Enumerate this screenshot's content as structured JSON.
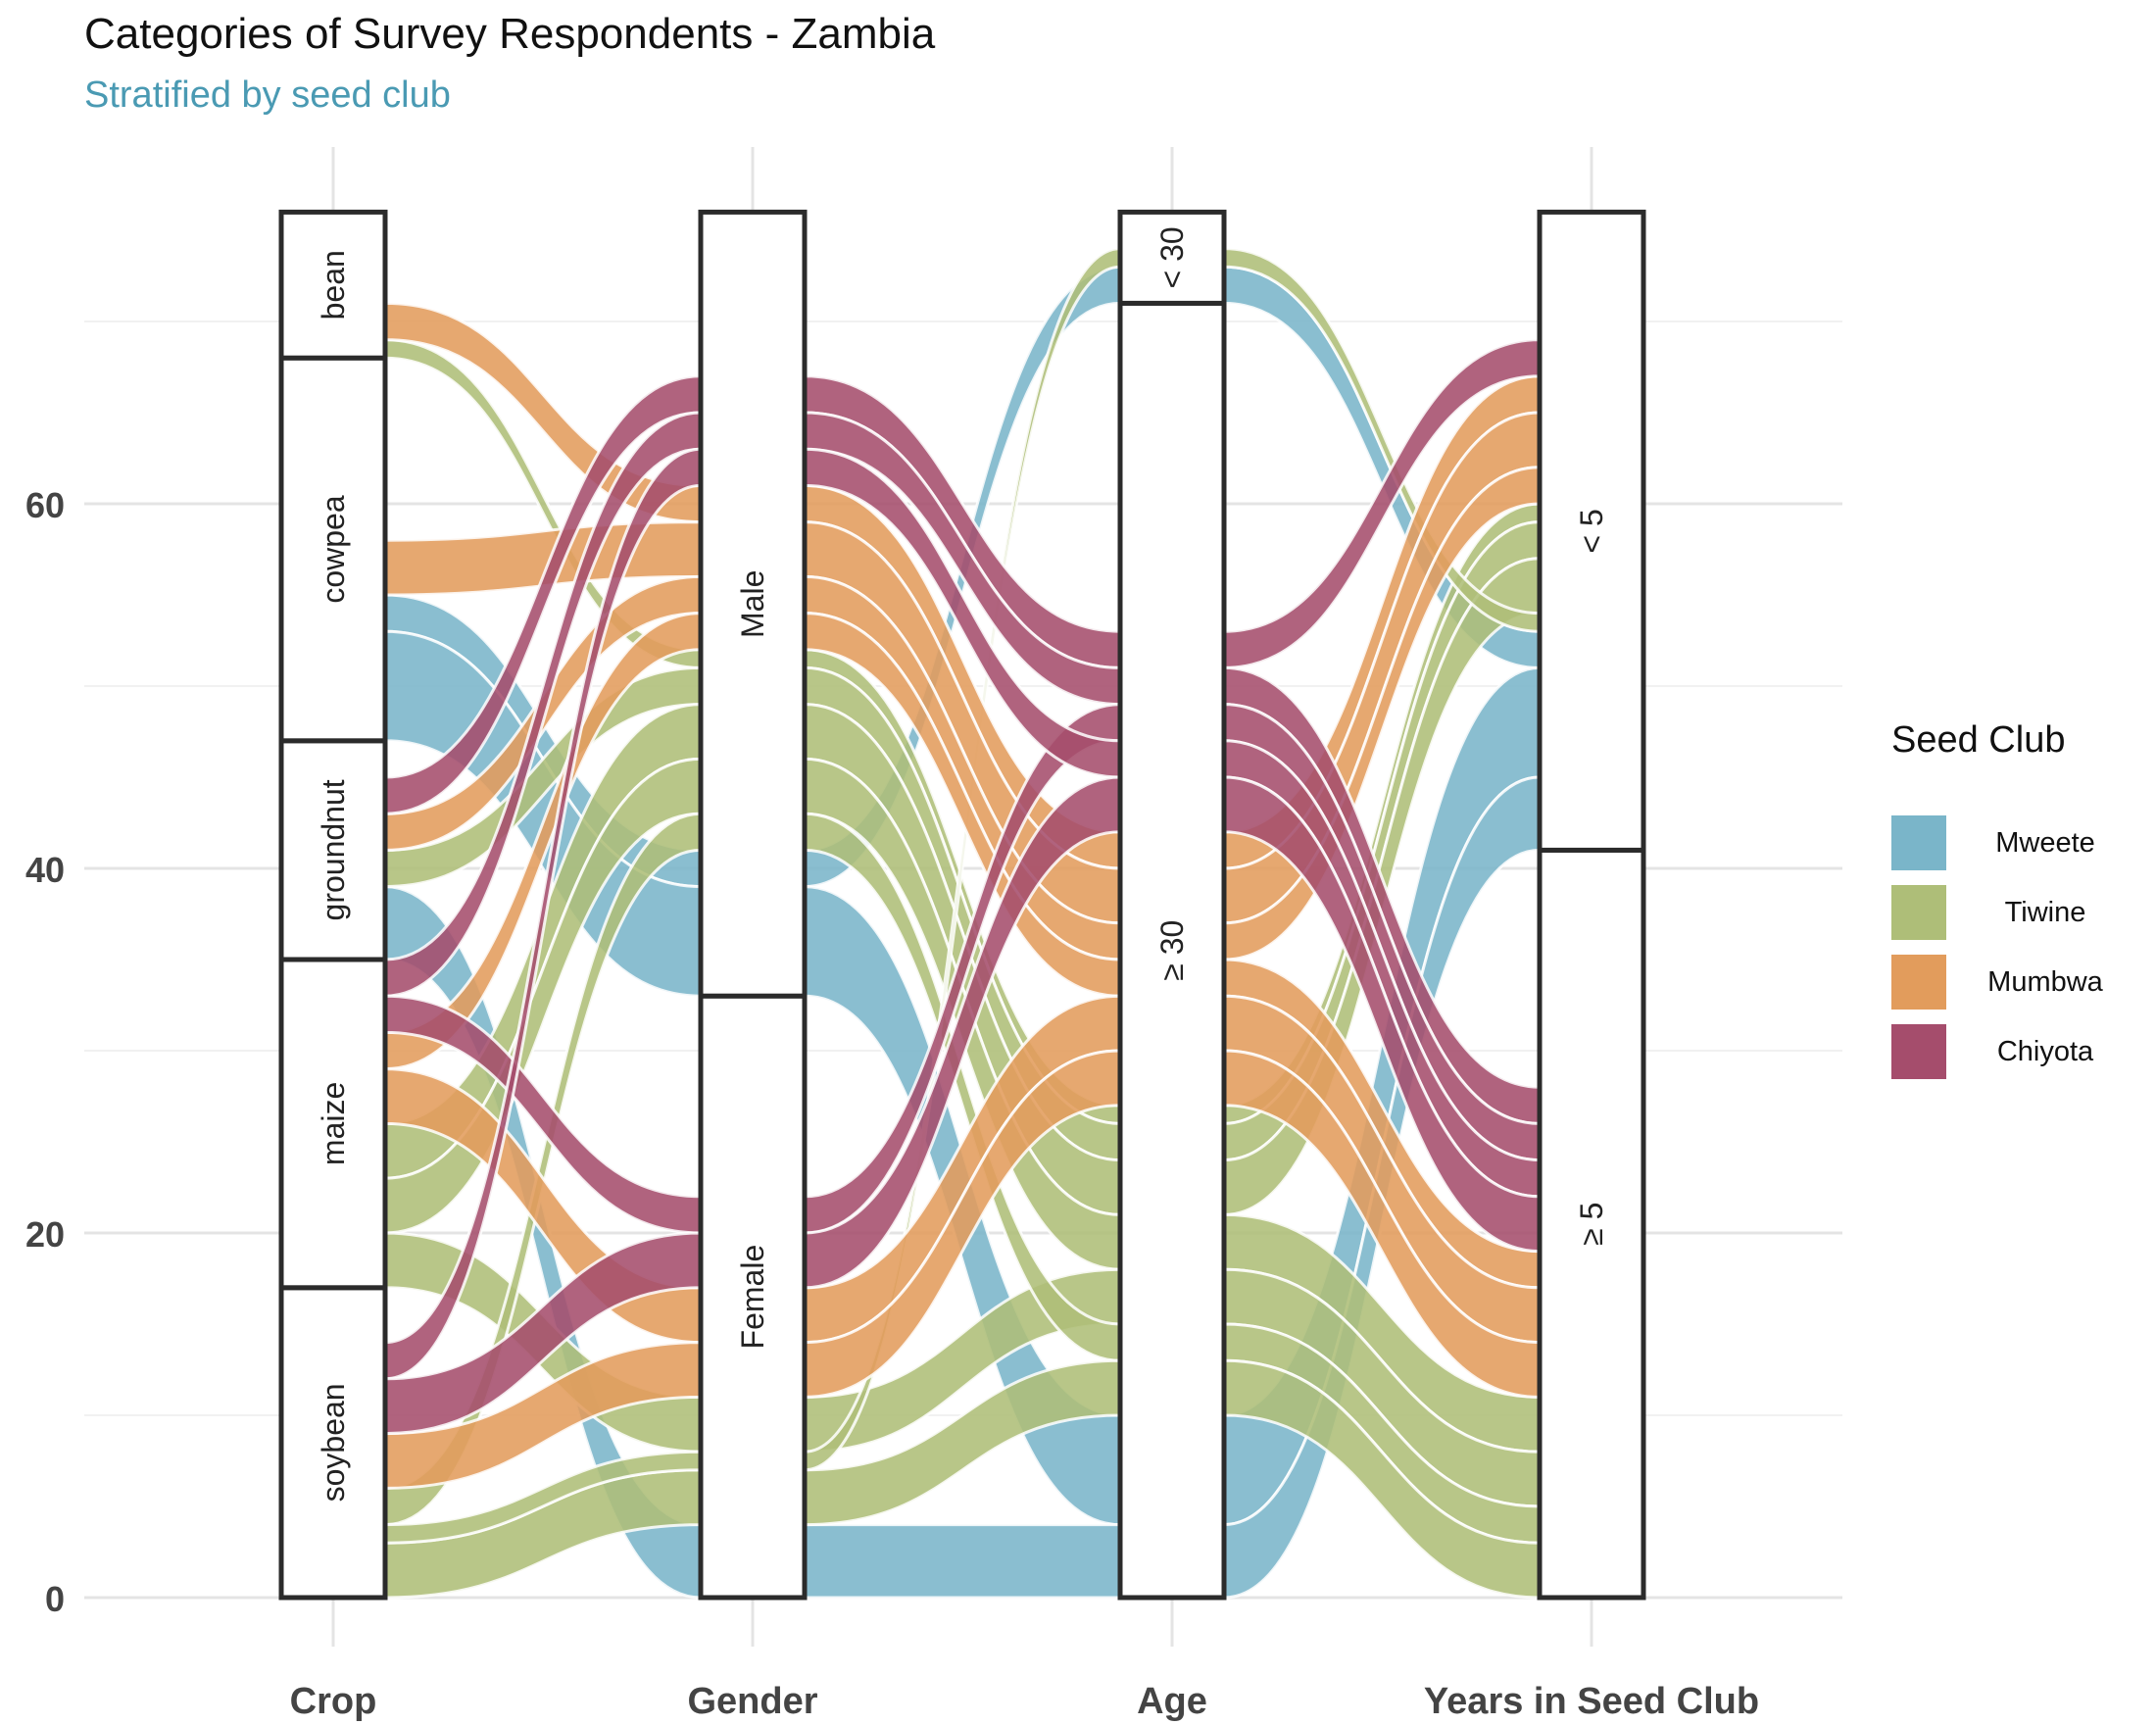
{
  "title": "Categories of Survey Respondents - Zambia",
  "subtitle": "Stratified by seed club",
  "legend": {
    "title": "Seed Club",
    "items": [
      {
        "label": "Mweete",
        "color": "#7ab5c9"
      },
      {
        "label": "Tiwine",
        "color": "#aebe78"
      },
      {
        "label": "Mumbwa",
        "color": "#e29c5c"
      },
      {
        "label": "Chiyota",
        "color": "#a54d6c"
      }
    ]
  },
  "chart_data": {
    "type": "alluvial",
    "title": "Categories of Survey Respondents - Zambia",
    "subtitle": "Stratified by seed club",
    "axes": [
      "Crop",
      "Gender",
      "Age",
      "Years in Seed Club"
    ],
    "y_ticks": [
      0,
      20,
      40,
      60
    ],
    "ylim": [
      0,
      76
    ],
    "strata": {
      "Crop": [
        {
          "label": "soybean",
          "count": 17
        },
        {
          "label": "maize",
          "count": 18
        },
        {
          "label": "groundnut",
          "count": 12
        },
        {
          "label": "cowpea",
          "count": 21
        },
        {
          "label": "bean",
          "count": 8
        }
      ],
      "Gender": [
        {
          "label": "Female",
          "count": 33
        },
        {
          "label": "Male",
          "count": 43
        }
      ],
      "Age": [
        {
          "label": "≥ 30",
          "count": 71
        },
        {
          "label": "< 30",
          "count": 5
        }
      ],
      "Years in Seed Club": [
        {
          "label": "≥ 5",
          "count": 41
        },
        {
          "label": "< 5",
          "count": 35
        }
      ]
    },
    "series": [
      {
        "name": "Mweete",
        "color": "#7ab5c9",
        "flows": [
          {
            "crop": "cowpea",
            "gender": "Male",
            "age": "< 30",
            "years": "< 5",
            "count": 2
          },
          {
            "crop": "cowpea",
            "gender": "Male",
            "age": "≥ 30",
            "years": "< 5",
            "count": 6
          },
          {
            "crop": "groundnut",
            "gender": "Female",
            "age": "≥ 30",
            "years": "< 5",
            "count": 4
          }
        ]
      },
      {
        "name": "Tiwine",
        "color": "#aebe78",
        "flows": [
          {
            "crop": "bean",
            "gender": "Male",
            "age": "≥ 30",
            "years": "< 5",
            "count": 1
          },
          {
            "crop": "groundnut",
            "gender": "Male",
            "age": "≥ 30",
            "years": "< 5",
            "count": 2
          },
          {
            "crop": "maize",
            "gender": "Male",
            "age": "≥ 30",
            "years": "< 5",
            "count": 3
          },
          {
            "crop": "maize",
            "gender": "Male",
            "age": "≥ 30",
            "years": "≥ 5",
            "count": 3
          },
          {
            "crop": "maize",
            "gender": "Female",
            "age": "≥ 30",
            "years": "≥ 5",
            "count": 3
          },
          {
            "crop": "soybean",
            "gender": "Male",
            "age": "≥ 30",
            "years": "≥ 5",
            "count": 2
          },
          {
            "crop": "soybean",
            "gender": "Female",
            "age": "≥ 30",
            "years": "≥ 5",
            "count": 3
          },
          {
            "crop": "soybean",
            "gender": "Female",
            "age": "< 30",
            "years": "< 5",
            "count": 1
          }
        ]
      },
      {
        "name": "Mumbwa",
        "color": "#e29c5c",
        "flows": [
          {
            "crop": "bean",
            "gender": "Male",
            "age": "≥ 30",
            "years": "< 5",
            "count": 2
          },
          {
            "crop": "cowpea",
            "gender": "Male",
            "age": "≥ 30",
            "years": "< 5",
            "count": 3
          },
          {
            "crop": "groundnut",
            "gender": "Male",
            "age": "≥ 30",
            "years": "< 5",
            "count": 2
          },
          {
            "crop": "maize",
            "gender": "Male",
            "age": "≥ 30",
            "years": "≥ 5",
            "count": 2
          },
          {
            "crop": "maize",
            "gender": "Female",
            "age": "≥ 30",
            "years": "≥ 5",
            "count": 3
          },
          {
            "crop": "soybean",
            "gender": "Female",
            "age": "≥ 30",
            "years": "≥ 5",
            "count": 3
          }
        ]
      },
      {
        "name": "Chiyota",
        "color": "#a54d6c",
        "flows": [
          {
            "crop": "groundnut",
            "gender": "Male",
            "age": "≥ 30",
            "years": "< 5",
            "count": 2
          },
          {
            "crop": "maize",
            "gender": "Male",
            "age": "≥ 30",
            "years": "≥ 5",
            "count": 2
          },
          {
            "crop": "maize",
            "gender": "Female",
            "age": "≥ 30",
            "years": "≥ 5",
            "count": 2
          },
          {
            "crop": "soybean",
            "gender": "Male",
            "age": "≥ 30",
            "years": "≥ 5",
            "count": 2
          },
          {
            "crop": "soybean",
            "gender": "Female",
            "age": "≥ 30",
            "years": "≥ 5",
            "count": 3
          }
        ]
      }
    ]
  }
}
